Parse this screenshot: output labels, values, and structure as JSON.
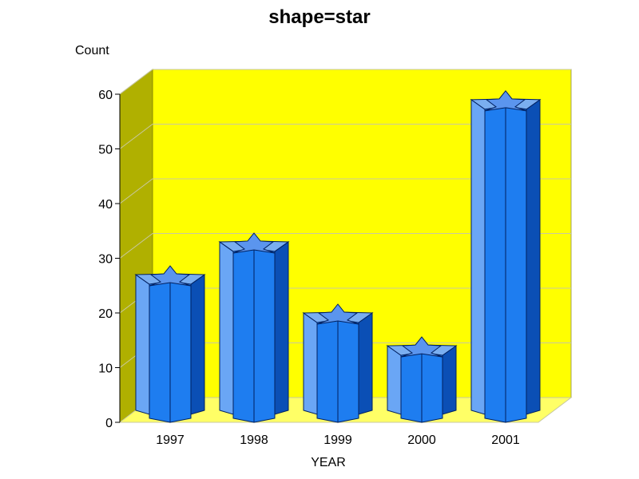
{
  "chart_data": {
    "type": "bar",
    "title": "shape=star",
    "xlabel": "YEAR",
    "ylabel": "Count",
    "categories": [
      "1997",
      "1998",
      "1999",
      "2000",
      "2001"
    ],
    "values": [
      27,
      33,
      20,
      14,
      59
    ],
    "ylim": [
      0,
      60
    ],
    "yticks": [
      0,
      10,
      20,
      30,
      40,
      50,
      60
    ],
    "grid": true,
    "bar_shape": "star",
    "colors": {
      "back_wall": "#ffff00",
      "side_wall": "#b0b000",
      "floor": "#ffff66",
      "grid": "#c8c8a0",
      "bar_front": "#1e7df0",
      "bar_left_face": "#6aa6f5",
      "bar_right_face": "#0b4fb5",
      "bar_top": "#7aaef0",
      "outline": "#002060"
    }
  }
}
